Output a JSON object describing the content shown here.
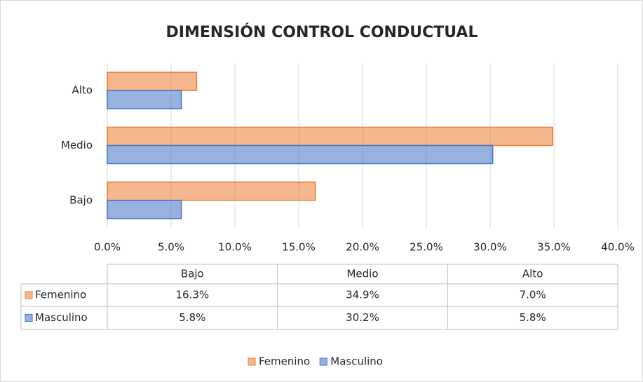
{
  "chart_data": {
    "type": "bar",
    "orientation": "horizontal",
    "title": "DIMENSIÓN CONTROL CONDUCTUAL",
    "categories": [
      "Bajo",
      "Medio",
      "Alto"
    ],
    "series": [
      {
        "name": "Femenino",
        "color": "#ed7d31",
        "values": [
          16.3,
          34.9,
          7.0
        ],
        "value_labels": [
          "16.3%",
          "34.9%",
          "7.0%"
        ]
      },
      {
        "name": "Masculino",
        "color": "#4472c4",
        "values": [
          5.8,
          30.2,
          5.8
        ],
        "value_labels": [
          "5.8%",
          "30.2%",
          "5.8%"
        ]
      }
    ],
    "xlim": [
      0,
      40
    ],
    "xticks": [
      {
        "value": 0,
        "label": "0.0%"
      },
      {
        "value": 5,
        "label": "5.0%"
      },
      {
        "value": 10,
        "label": "10.0%"
      },
      {
        "value": 15,
        "label": "15.0%"
      },
      {
        "value": 20,
        "label": "20.0%"
      },
      {
        "value": 25,
        "label": "25.0%"
      },
      {
        "value": 30,
        "label": "30.0%"
      },
      {
        "value": 35,
        "label": "35.0%"
      },
      {
        "value": 40,
        "label": "40.0%"
      }
    ],
    "grid": true,
    "legend": "bottom",
    "data_table": true
  }
}
